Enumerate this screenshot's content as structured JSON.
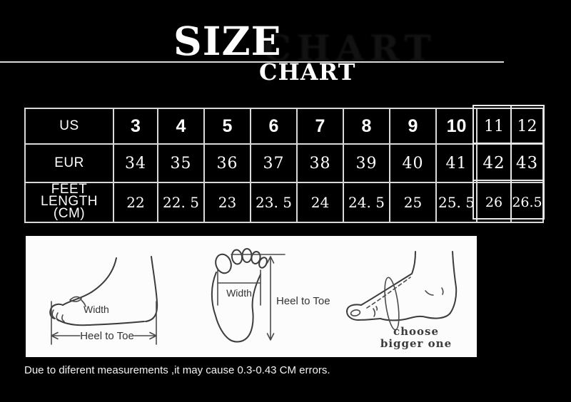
{
  "header": {
    "title_line1": "SIZE",
    "title_line2": "CHART"
  },
  "size_table": {
    "rows": [
      {
        "key": "us",
        "label": "US",
        "values": [
          "3",
          "4",
          "5",
          "6",
          "7",
          "8",
          "9",
          "10",
          "11",
          "12"
        ]
      },
      {
        "key": "eur",
        "label": "EUR",
        "values": [
          "34",
          "35",
          "36",
          "37",
          "38",
          "39",
          "40",
          "41",
          "42",
          "43"
        ]
      },
      {
        "key": "feet",
        "label": "FEET LENGTH (CM)",
        "values": [
          "22",
          "22. 5",
          "23",
          "23. 5",
          "24",
          "24. 5",
          "25",
          "25. 5",
          "26",
          "26.5"
        ]
      }
    ]
  },
  "diagrams": {
    "side_view": {
      "width_label": "Width",
      "length_label": "Heel to Toe"
    },
    "bottom_view": {
      "width_label": "Width",
      "length_label": "Heel to Toe"
    },
    "girth_view": {
      "note_line1": "choose",
      "note_line2": "bigger one"
    }
  },
  "footnote": {
    "text": "Due to diferent measurements ,it may cause 0.3-0.43 CM errors."
  },
  "colors": {
    "background": "#000000",
    "table_line": "#d9d9d9",
    "text": "#ffffff",
    "panel": "#fcfcfc",
    "sketch": "#3c3c3c"
  }
}
